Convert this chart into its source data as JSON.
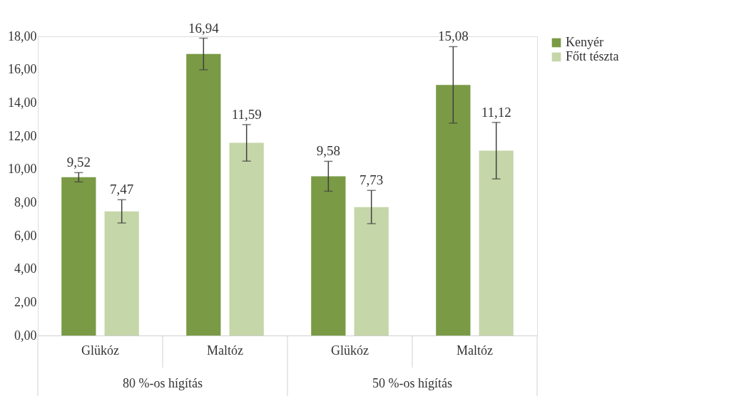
{
  "chart_data": {
    "type": "bar",
    "categories": [
      "Glükóz",
      "Maltóz",
      "Glükóz",
      "Maltóz"
    ],
    "annotations": [
      "80 %-os hígítás",
      "50 %-os hígítás"
    ],
    "series": [
      {
        "name": "Kenyér",
        "color": "#7a9a45",
        "values": [
          9.52,
          16.94,
          9.58,
          15.08
        ],
        "errors": [
          0.28,
          0.95,
          0.9,
          2.3
        ],
        "value_labels": [
          "9,52",
          "16,94",
          "9,58",
          "15,08"
        ]
      },
      {
        "name": "Főtt tészta",
        "color": "#c5d6a8",
        "values": [
          7.47,
          11.59,
          7.73,
          11.12
        ],
        "errors": [
          0.7,
          1.1,
          1.0,
          1.7
        ],
        "value_labels": [
          "7,47",
          "11,59",
          "7,73",
          "11,12"
        ]
      }
    ],
    "ylim": [
      0,
      18
    ],
    "yticks": [
      {
        "value": 0,
        "label": "0,00"
      },
      {
        "value": 2,
        "label": "2,00"
      },
      {
        "value": 4,
        "label": "4,00"
      },
      {
        "value": 6,
        "label": "6,00"
      },
      {
        "value": 8,
        "label": "8,00"
      },
      {
        "value": 10,
        "label": "10,00"
      },
      {
        "value": 12,
        "label": "12,00"
      },
      {
        "value": 14,
        "label": "14,00"
      },
      {
        "value": 16,
        "label": "16,00"
      },
      {
        "value": 18,
        "label": "18,00"
      }
    ],
    "grid": false,
    "legend": "right"
  }
}
